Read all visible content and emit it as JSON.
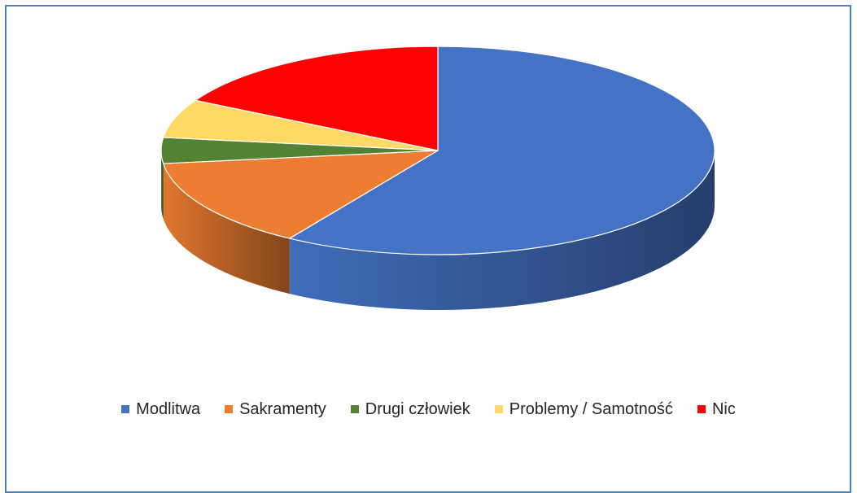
{
  "chart_data": {
    "type": "pie",
    "style": "3d",
    "title": "",
    "legend_position": "bottom",
    "categories": [
      "Modlitwa",
      "Sakramenty",
      "Drugi człowiek",
      "Problemy / Samotność",
      "Nic"
    ],
    "values": [
      59,
      14,
      4,
      6,
      17
    ],
    "colors": [
      "#4472c4",
      "#ed7d31",
      "#548235",
      "#ffd966",
      "#ff0000"
    ]
  }
}
